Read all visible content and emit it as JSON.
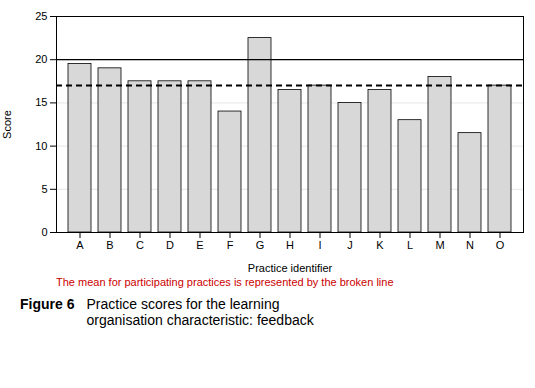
{
  "chart_data": {
    "type": "bar",
    "categories": [
      "A",
      "B",
      "C",
      "D",
      "E",
      "F",
      "G",
      "H",
      "I",
      "J",
      "K",
      "L",
      "M",
      "N",
      "O"
    ],
    "values": [
      19.5,
      19.0,
      17.5,
      17.5,
      17.5,
      14.0,
      22.5,
      16.5,
      17.0,
      15.0,
      16.5,
      13.0,
      18.0,
      11.5,
      17.0
    ],
    "color": "#d8d8d8",
    "xlabel": "Practice identifier",
    "ylabel": "Score",
    "ylim": [
      0,
      25
    ],
    "yticks": [
      0,
      5,
      10,
      15,
      20,
      25
    ],
    "grid": true,
    "mean_line": 17.0,
    "max_line": 20.0,
    "caption": "The mean for participating practices is represented by the broken line",
    "caption_color": "#cc0000",
    "figure_label": "Figure 6",
    "title": "Practice scores for the learning\norganisation characteristic: feedback"
  }
}
